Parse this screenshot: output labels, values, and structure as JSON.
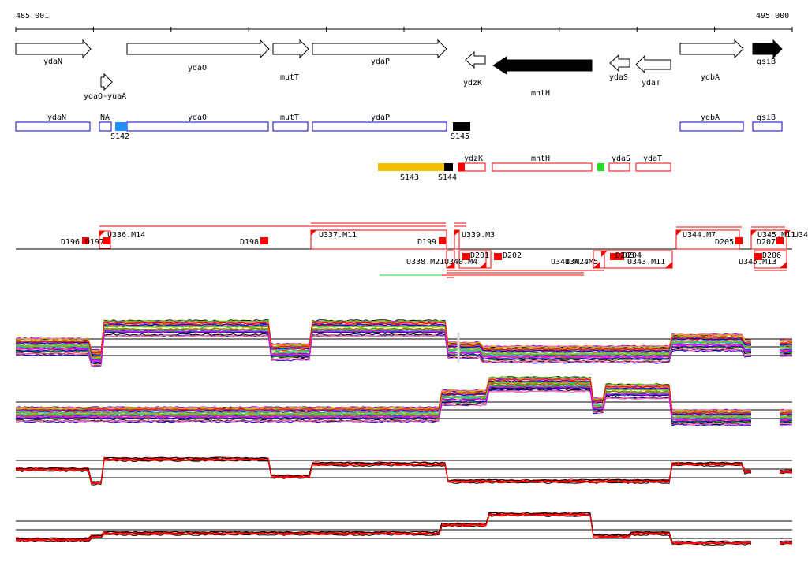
{
  "ruler": {
    "start_label": "485 001",
    "end_label": "495 000"
  },
  "genes": [
    {
      "label": "ydaN",
      "strand": "+",
      "fill": "white"
    },
    {
      "label": "ydaO",
      "strand": "+",
      "fill": "white"
    },
    {
      "label": "mutT",
      "strand": "+",
      "fill": "white"
    },
    {
      "label": "ydaP",
      "strand": "+",
      "fill": "white"
    },
    {
      "label": "ydzK",
      "strand": "-",
      "fill": "white"
    },
    {
      "label": "mntH",
      "strand": "-",
      "fill": "black"
    },
    {
      "label": "ydaS",
      "strand": "-",
      "fill": "white"
    },
    {
      "label": "ydaT",
      "strand": "-",
      "fill": "white"
    },
    {
      "label": "ydbA",
      "strand": "+",
      "fill": "white"
    },
    {
      "label": "gsiB",
      "strand": "+",
      "fill": "black"
    },
    {
      "label": "ydaO-yuaA",
      "strand": "+",
      "fill": "white"
    }
  ],
  "blue_track": [
    {
      "label": "ydaN"
    },
    {
      "label": "NA"
    },
    {
      "label": "ydaO"
    },
    {
      "label": "mutT"
    },
    {
      "label": "ydaP"
    },
    {
      "label": "ydbA"
    },
    {
      "label": "gsiB"
    }
  ],
  "segments": [
    {
      "label": "S142",
      "color": "#1e90ff"
    },
    {
      "label": "S145",
      "color": "#000000"
    },
    {
      "label": "S143",
      "color": "#f5c000"
    },
    {
      "label": "S144",
      "color": "#000000"
    }
  ],
  "red_track": [
    {
      "label": "ydzK"
    },
    {
      "label": "mntH"
    },
    {
      "label": "ydaS"
    },
    {
      "label": "ydaT"
    }
  ],
  "green_marker_color": "#22dd22",
  "upper_features": [
    {
      "label": "D196"
    },
    {
      "label": "D197"
    },
    {
      "label": "U336.M14"
    },
    {
      "label": "D198"
    },
    {
      "label": "U337.M11"
    },
    {
      "label": "D199"
    },
    {
      "label": "U339.M3"
    },
    {
      "label": "U344.M7"
    },
    {
      "label": "D205"
    },
    {
      "label": "U345.M11"
    },
    {
      "label": "D207"
    },
    {
      "label": "U34"
    }
  ],
  "lower_features": [
    {
      "label": "U338.M21"
    },
    {
      "label": "U340.M4"
    },
    {
      "label": "D201"
    },
    {
      "label": "D202"
    },
    {
      "label": "U341.M14"
    },
    {
      "label": "U342.M5"
    },
    {
      "label": "D203"
    },
    {
      "label": "D204"
    },
    {
      "label": "U343.M11"
    },
    {
      "label": "U345.M13"
    },
    {
      "label": "D206"
    }
  ],
  "colors": {
    "feature_red": "#ff0000",
    "gene_outline": "#000000",
    "blue_outline": "#0000cc"
  }
}
